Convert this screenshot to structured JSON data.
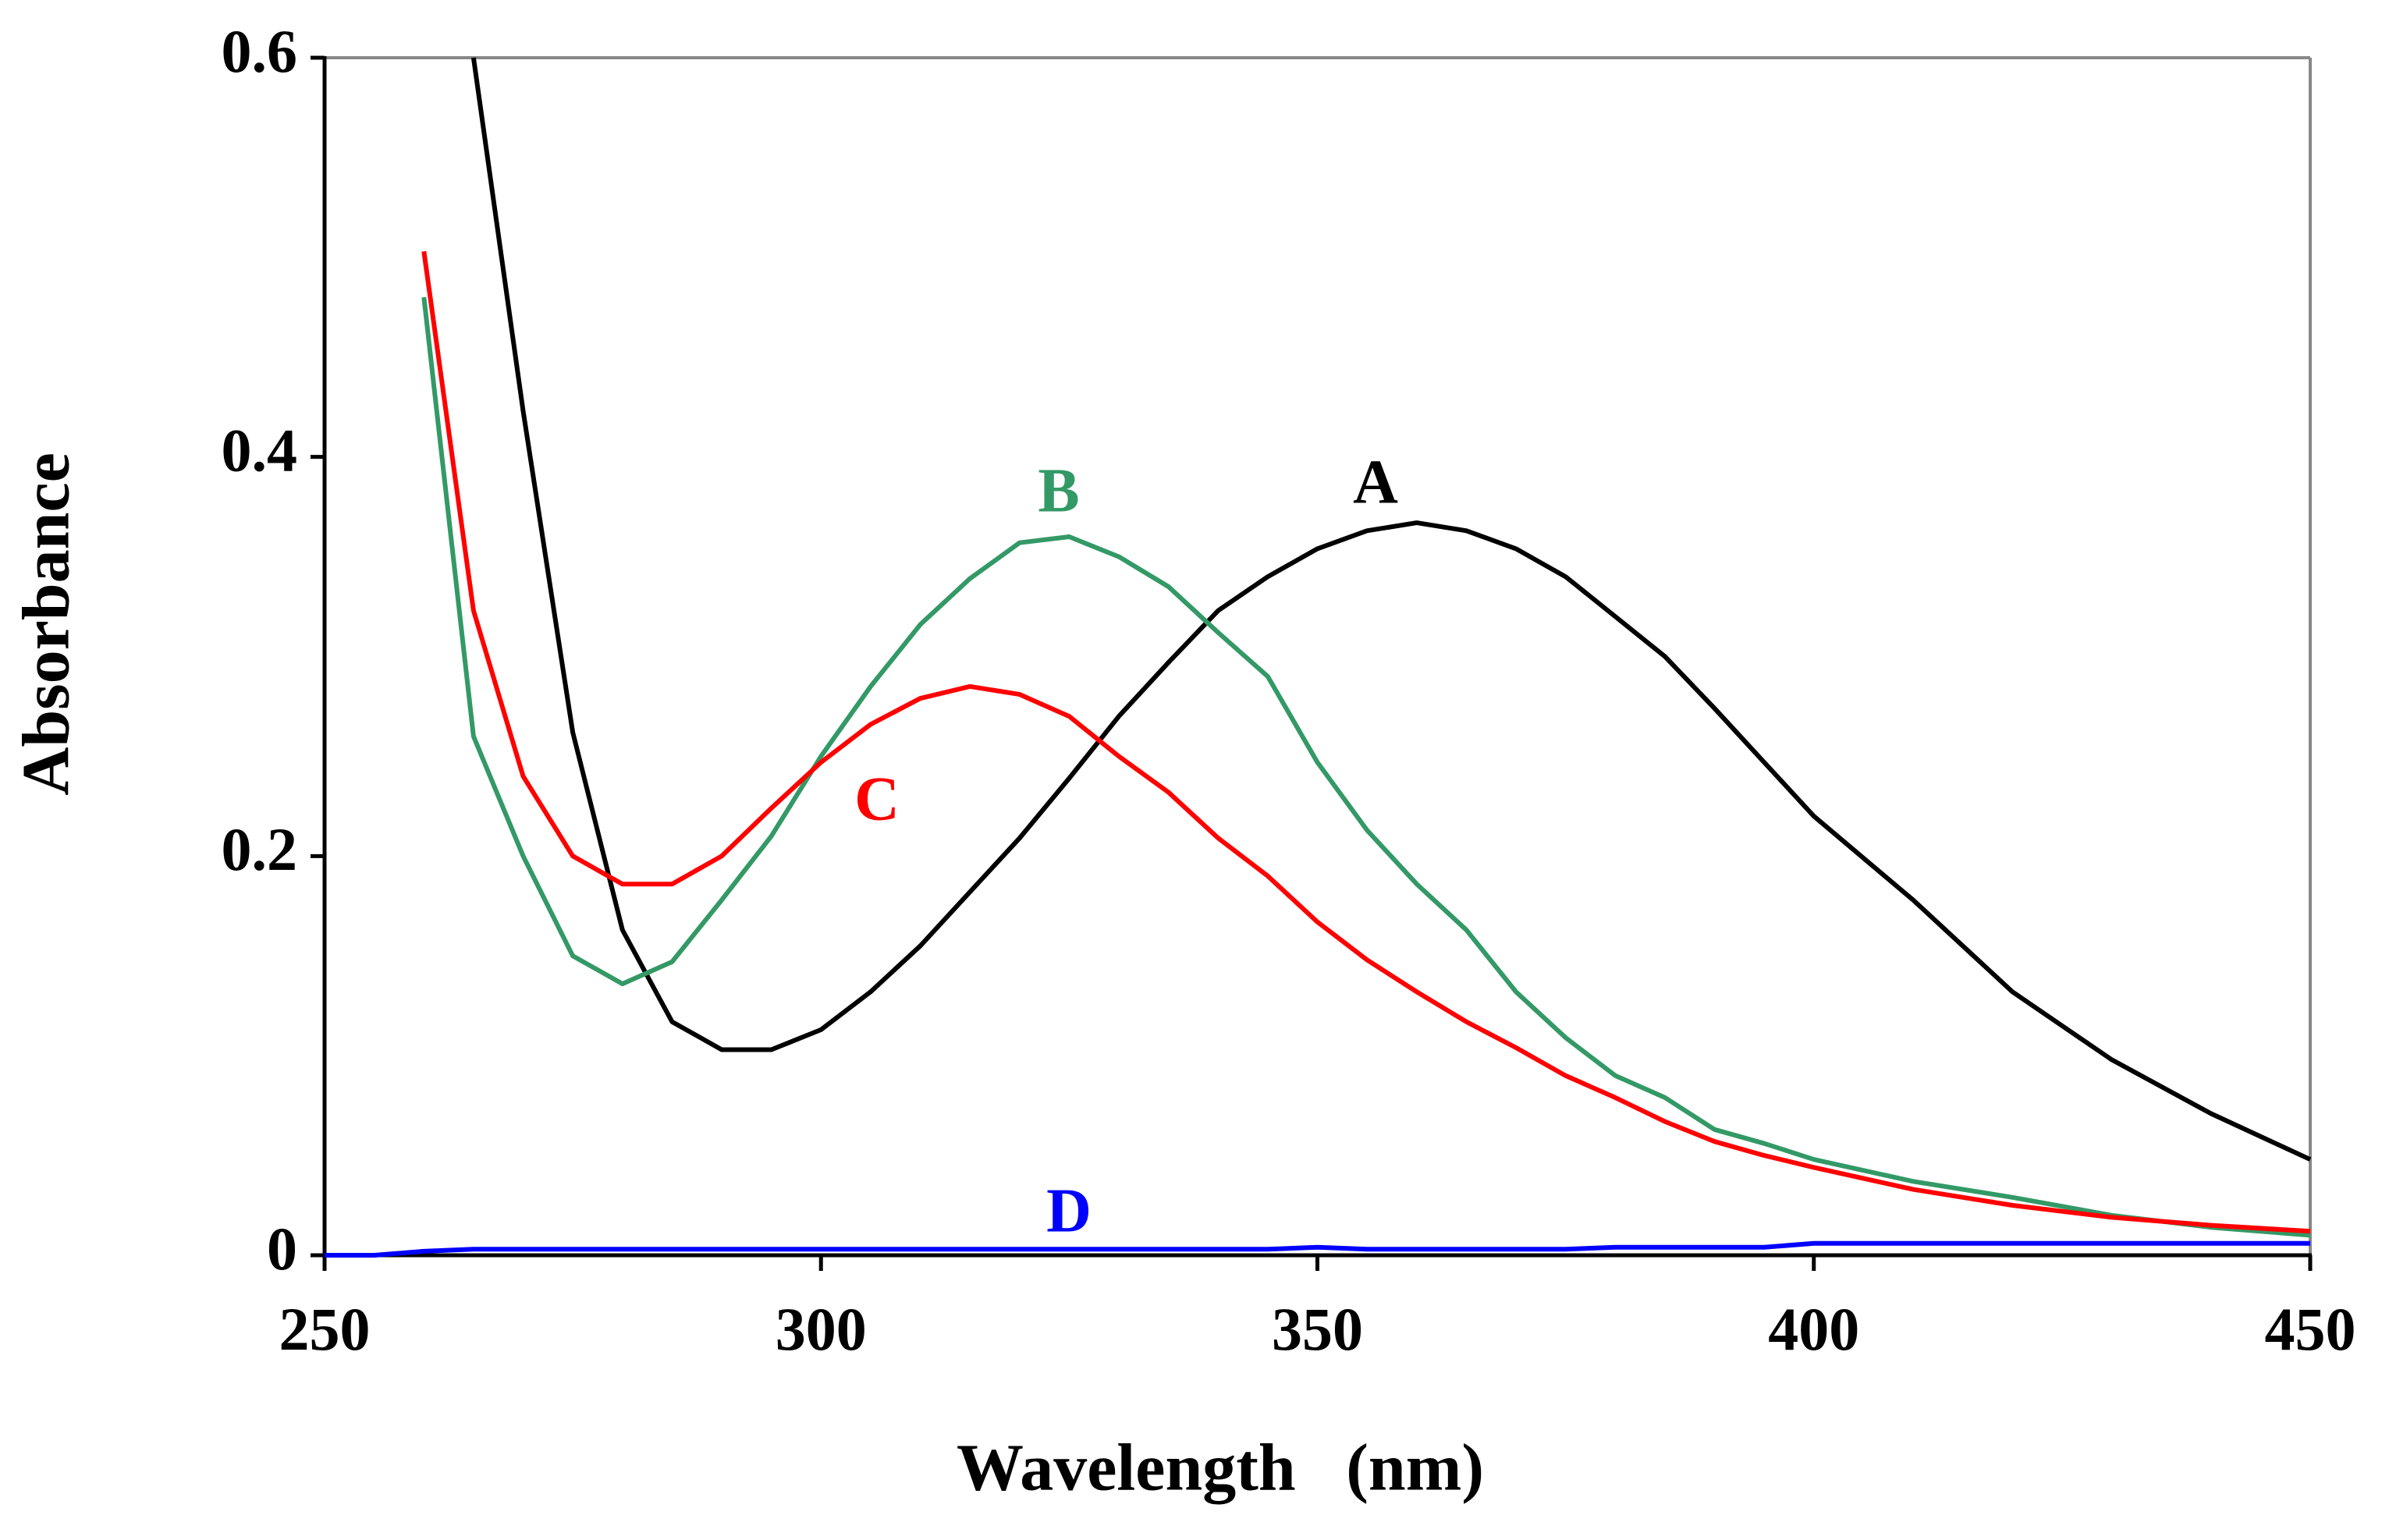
{
  "chart_data": {
    "type": "line",
    "x_label": "Wavelength   (nm)",
    "y_label": "Absorbance",
    "x": [
      250,
      255,
      260,
      265,
      270,
      275,
      280,
      285,
      290,
      295,
      300,
      305,
      310,
      315,
      320,
      325,
      330,
      335,
      340,
      345,
      350,
      355,
      360,
      365,
      370,
      375,
      380,
      385,
      390,
      395,
      400,
      410,
      420,
      430,
      440,
      450
    ],
    "series": [
      {
        "name": "A",
        "color": "#000000",
        "values": [
          null,
          null,
          null,
          0.6,
          0.423,
          0.262,
          0.163,
          0.117,
          0.103,
          0.103,
          0.113,
          0.132,
          0.155,
          0.182,
          0.209,
          0.239,
          0.27,
          0.297,
          0.323,
          0.34,
          0.354,
          0.363,
          0.367,
          0.363,
          0.354,
          0.34,
          0.32,
          0.3,
          0.274,
          0.247,
          0.22,
          0.178,
          0.132,
          0.098,
          0.071,
          0.048
        ]
      },
      {
        "name": "B",
        "color": "#339966",
        "values": [
          null,
          null,
          0.48,
          0.26,
          0.2,
          0.15,
          0.136,
          0.147,
          0.178,
          0.21,
          0.25,
          0.285,
          0.316,
          0.339,
          0.357,
          0.36,
          0.35,
          0.335,
          0.312,
          0.29,
          0.247,
          0.213,
          0.186,
          0.163,
          0.132,
          0.109,
          0.09,
          0.079,
          0.063,
          0.056,
          0.048,
          0.037,
          0.029,
          0.02,
          0.014,
          0.01
        ]
      },
      {
        "name": "C",
        "color": "#ff0000",
        "values": [
          null,
          null,
          0.503,
          0.323,
          0.24,
          0.2,
          0.186,
          0.186,
          0.2,
          0.224,
          0.247,
          0.266,
          0.279,
          0.285,
          0.281,
          0.27,
          0.25,
          0.232,
          0.209,
          0.19,
          0.167,
          0.148,
          0.132,
          0.117,
          0.104,
          0.09,
          0.079,
          0.067,
          0.057,
          0.05,
          0.044,
          0.033,
          0.025,
          0.019,
          0.015,
          0.012
        ]
      },
      {
        "name": "D",
        "color": "#0000ff",
        "values": [
          0,
          0,
          0.002,
          0.003,
          0.003,
          0.003,
          0.003,
          0.003,
          0.003,
          0.003,
          0.003,
          0.003,
          0.003,
          0.003,
          0.003,
          0.003,
          0.003,
          0.003,
          0.003,
          0.003,
          0.004,
          0.003,
          0.003,
          0.003,
          0.003,
          0.003,
          0.004,
          0.004,
          0.004,
          0.004,
          0.006,
          0.006,
          0.006,
          0.006,
          0.006,
          0.006
        ]
      }
    ],
    "xlim": [
      250,
      450
    ],
    "xticks": [
      250,
      300,
      350,
      400,
      450
    ],
    "ylim": [
      0,
      0.6
    ],
    "yticks": [
      0,
      0.2,
      0.4,
      0.6
    ]
  }
}
